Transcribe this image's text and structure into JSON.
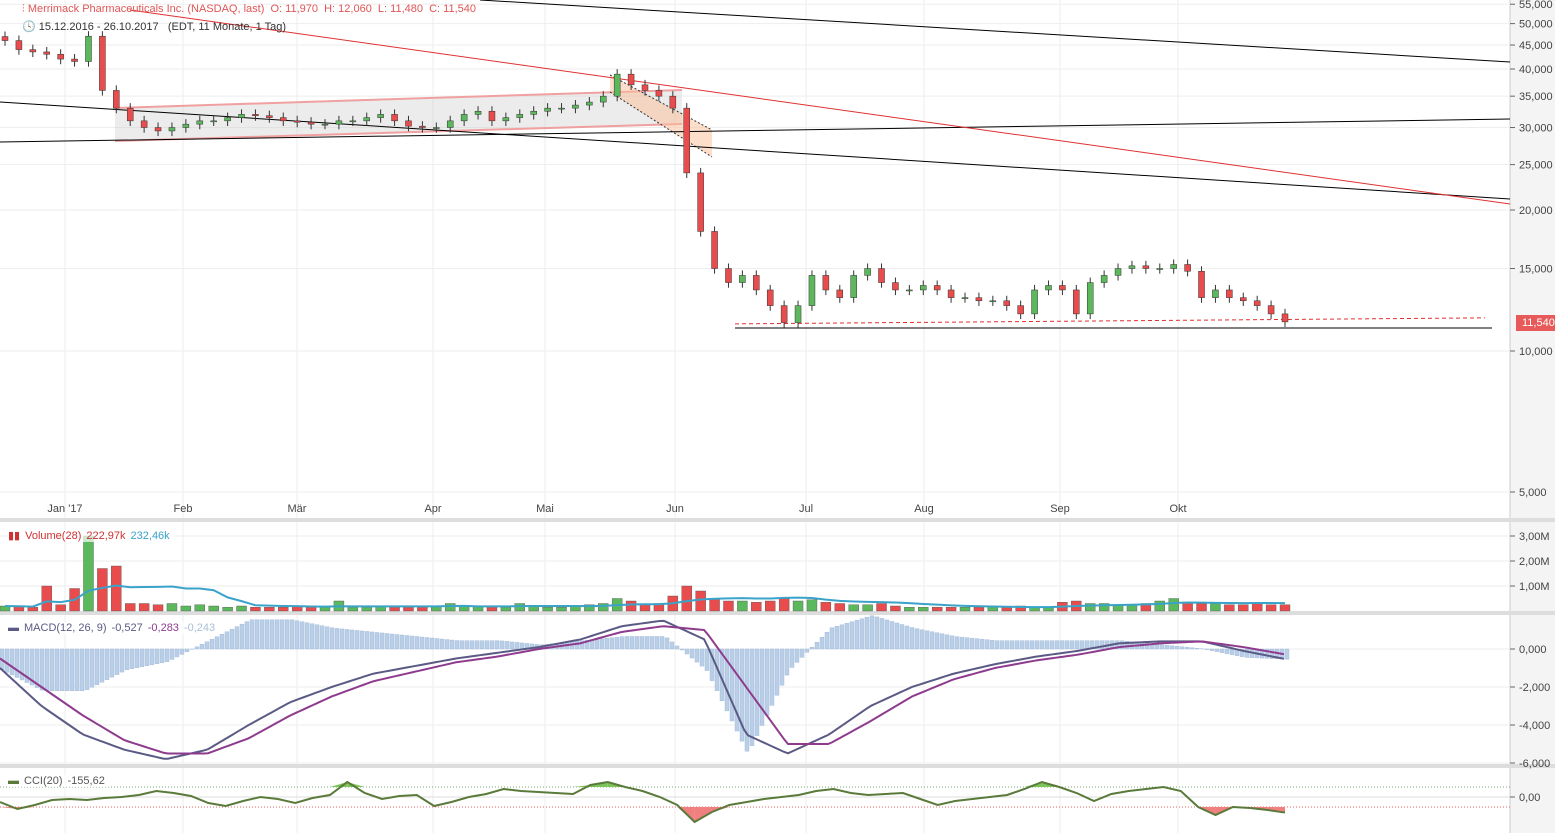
{
  "header": {
    "title": "Merrimack Pharmaceuticals Inc. (NASDAQ, last)",
    "ohlc": "O: 11,970  H: 12,060  L: 11,480  C: 11,540",
    "range": "15.12.2016 - 26.10.2017",
    "range_info": "(EDT, 11 Monate, 1 Tag)",
    "last_price": "11,540"
  },
  "colors": {
    "up": "#5cb85c",
    "down": "#e84c4c",
    "volume_avg": "#3aa3c9",
    "macd": "#5a5a85",
    "signal": "#8e3b8e",
    "histogram": "#b9cfe8",
    "cci": "#5a7a3a",
    "trend_red": "#e03030",
    "trend_black": "#000000"
  },
  "chart_data": [
    {
      "type": "candlestick",
      "scale": "log",
      "x_range": [
        "15.12.2016",
        "26.10.2017"
      ],
      "x_ticks": [
        "Jan '17",
        "Feb",
        "Mär",
        "Apr",
        "Mai",
        "Jun",
        "Jul",
        "Aug",
        "Sep",
        "Okt"
      ],
      "y_ticks": [
        "5,000",
        "10,000",
        "15,000",
        "20,000",
        "25,000",
        "30,000",
        "35,000",
        "40,000",
        "45,000",
        "50,000",
        "55,000"
      ],
      "ylim": [
        4.5,
        56
      ],
      "closes": [
        46,
        44,
        43.5,
        43,
        42,
        41.5,
        47,
        36,
        33,
        31,
        30,
        29.5,
        30,
        30.5,
        31,
        31,
        31.5,
        32,
        31.8,
        31.5,
        31,
        30.8,
        30.5,
        30.5,
        31,
        31,
        31.5,
        32,
        31,
        30.2,
        30,
        30,
        31,
        32,
        32.5,
        31,
        31.5,
        32,
        32.5,
        33,
        33,
        33.5,
        34,
        35,
        39,
        37,
        36,
        35,
        33,
        24,
        18,
        15,
        14,
        14.5,
        13.5,
        12.5,
        11.5,
        12.5,
        14.5,
        13.5,
        13,
        14.5,
        15,
        14,
        13.5,
        13.5,
        13.8,
        13.5,
        13,
        13,
        12.8,
        12.8,
        12.5,
        12,
        13.5,
        13.8,
        13.5,
        12,
        14,
        14.5,
        15,
        15.2,
        15,
        15,
        15.3,
        14.8,
        13,
        13.5,
        13,
        12.8,
        12.5,
        12,
        11.54
      ],
      "support_level": 11.3
    },
    {
      "type": "bar",
      "title": "Volume(28)",
      "values_label": "222,97k",
      "avg_label": "232,46k",
      "y_ticks": [
        "1,00M",
        "2,00M",
        "3,00M"
      ],
      "volumes_k": [
        200,
        180,
        150,
        1000,
        250,
        900,
        3000,
        1700,
        1800,
        300,
        300,
        250,
        300,
        200,
        250,
        200,
        150,
        200,
        150,
        150,
        150,
        180,
        150,
        150,
        400,
        150,
        150,
        200,
        150,
        150,
        150,
        200,
        300,
        200,
        200,
        150,
        150,
        300,
        200,
        150,
        150,
        200,
        250,
        300,
        500,
        400,
        250,
        300,
        600,
        1000,
        800,
        500,
        400,
        400,
        350,
        400,
        500,
        400,
        450,
        350,
        300,
        250,
        250,
        300,
        200,
        150,
        150,
        150,
        150,
        150,
        150,
        150,
        150,
        200,
        150,
        150,
        350,
        400,
        300,
        300,
        250,
        250,
        300,
        400,
        500,
        350,
        300,
        300,
        250,
        250,
        300,
        250,
        250
      ]
    },
    {
      "type": "line",
      "title": "MACD(12, 26, 9)",
      "values": [
        "-0,527",
        "-0,283",
        "-0,243"
      ],
      "y_ticks": [
        "0,000",
        "-2,000",
        "-4,000",
        "-6,000"
      ],
      "macd": [
        -1,
        -3,
        -4.5,
        -5.3,
        -5.8,
        -5.3,
        -4,
        -2.8,
        -2,
        -1.3,
        -0.9,
        -0.5,
        -0.2,
        0.1,
        0.5,
        1.2,
        1.5,
        0.5,
        -4.5,
        -5.5,
        -4.5,
        -3,
        -2,
        -1.3,
        -0.8,
        -0.4,
        -0.1,
        0.3,
        0.4,
        0.4,
        -0.1,
        -0.527
      ],
      "signal": [
        -0.5,
        -2,
        -3.5,
        -4.8,
        -5.5,
        -5.5,
        -4.7,
        -3.5,
        -2.5,
        -1.7,
        -1.2,
        -0.7,
        -0.4,
        0,
        0.3,
        0.9,
        1.2,
        1.0,
        -2,
        -5,
        -5,
        -3.8,
        -2.5,
        -1.6,
        -1.0,
        -0.6,
        -0.3,
        0.1,
        0.3,
        0.4,
        0.1,
        -0.283
      ]
    },
    {
      "type": "area",
      "title": "CCI(20)",
      "value": "-155,62",
      "y_ticks": [
        "0,00"
      ],
      "cci": [
        -50,
        -120,
        -80,
        -30,
        -20,
        -30,
        -10,
        0,
        20,
        60,
        40,
        10,
        -60,
        -90,
        -40,
        0,
        -20,
        -60,
        -10,
        20,
        150,
        40,
        -20,
        10,
        20,
        -90,
        -50,
        0,
        30,
        80,
        60,
        50,
        40,
        30,
        120,
        150,
        100,
        60,
        0,
        -80,
        -250,
        -150,
        -80,
        -50,
        -20,
        0,
        20,
        60,
        80,
        40,
        20,
        30,
        40,
        -20,
        -80,
        -40,
        -20,
        0,
        20,
        80,
        150,
        100,
        40,
        -40,
        30,
        60,
        80,
        100,
        60,
        -100,
        -180,
        -100,
        -110,
        -130,
        -155.62
      ]
    }
  ]
}
